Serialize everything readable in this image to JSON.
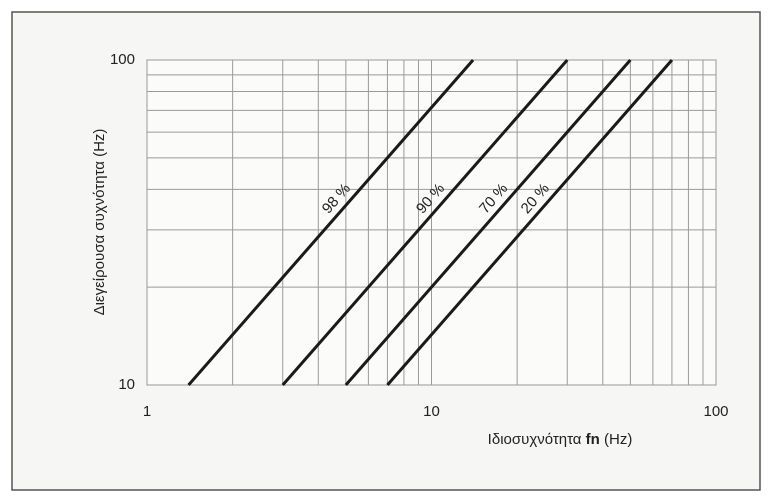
{
  "chart_data": {
    "type": "line",
    "ylabel": "Διεγείρουσα συχνότητα  (Hz)",
    "xlabel": [
      "Ιδιοσυχνότητα",
      "fn",
      "(Hz)"
    ],
    "xscale": "log",
    "yscale": "log",
    "xlim": [
      1,
      100
    ],
    "ylim": [
      10,
      100
    ],
    "xticks": [
      1,
      10,
      100
    ],
    "yticks": [
      10,
      100
    ],
    "xminor": [
      2,
      3,
      4,
      5,
      6,
      7,
      8,
      9,
      20,
      30,
      40,
      50,
      60,
      70,
      80,
      90
    ],
    "yminor": [
      20,
      30,
      40,
      50,
      60,
      70,
      80,
      90
    ],
    "grid": true,
    "series": [
      {
        "name": "98 %",
        "color": "#1a1a1a",
        "x": [
          1.4,
          14
        ],
        "values": [
          10,
          100
        ]
      },
      {
        "name": "90 %",
        "color": "#1a1a1a",
        "x": [
          3,
          30
        ],
        "values": [
          10,
          100
        ]
      },
      {
        "name": "70 %",
        "color": "#1a1a1a",
        "x": [
          5,
          50
        ],
        "values": [
          10,
          100
        ]
      },
      {
        "name": "20 %",
        "color": "#1a1a1a",
        "x": [
          7,
          70
        ],
        "values": [
          10,
          100
        ]
      }
    ]
  }
}
